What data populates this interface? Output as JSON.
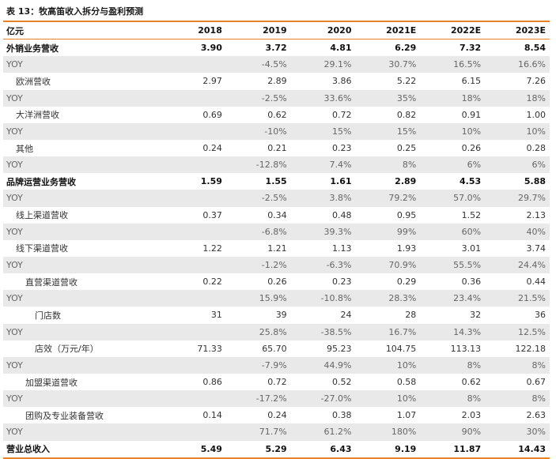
{
  "caption": "表 13：牧高笛收入拆分与盈利预测",
  "header": [
    "亿元",
    "2018",
    "2019",
    "2020",
    "2021E",
    "2022E",
    "2023E"
  ],
  "rows": [
    {
      "label": "外销业务营收",
      "type": "bold",
      "indent": 0,
      "values": [
        "3.90",
        "3.72",
        "4.81",
        "6.29",
        "7.32",
        "8.54"
      ]
    },
    {
      "label": "YOY",
      "type": "yoy",
      "indent": 0,
      "values": [
        "",
        "-4.5%",
        "29.1%",
        "30.7%",
        "16.5%",
        "16.6%"
      ]
    },
    {
      "label": "欧洲营收",
      "type": "normal",
      "indent": 1,
      "values": [
        "2.97",
        "2.89",
        "3.86",
        "5.22",
        "6.15",
        "7.26"
      ]
    },
    {
      "label": "YOY",
      "type": "yoy",
      "indent": 0,
      "values": [
        "",
        "-2.5%",
        "33.6%",
        "35%",
        "18%",
        "18%"
      ]
    },
    {
      "label": "大洋洲营收",
      "type": "normal",
      "indent": 1,
      "values": [
        "0.69",
        "0.62",
        "0.72",
        "0.82",
        "0.91",
        "1.00"
      ]
    },
    {
      "label": "YOY",
      "type": "yoy",
      "indent": 0,
      "values": [
        "",
        "-10%",
        "15%",
        "15%",
        "10%",
        "10%"
      ]
    },
    {
      "label": "其他",
      "type": "normal",
      "indent": 1,
      "values": [
        "0.24",
        "0.21",
        "0.23",
        "0.25",
        "0.26",
        "0.28"
      ]
    },
    {
      "label": "YOY",
      "type": "yoy",
      "indent": 0,
      "values": [
        "",
        "-12.8%",
        "7.4%",
        "8%",
        "6%",
        "6%"
      ]
    },
    {
      "label": "品牌运营业务营收",
      "type": "bold",
      "indent": 0,
      "values": [
        "1.59",
        "1.55",
        "1.61",
        "2.89",
        "4.53",
        "5.88"
      ]
    },
    {
      "label": "YOY",
      "type": "yoy",
      "indent": 0,
      "values": [
        "",
        "-2.5%",
        "3.8%",
        "79.2%",
        "57.0%",
        "29.7%"
      ]
    },
    {
      "label": "线上渠道营收",
      "type": "normal",
      "indent": 1,
      "values": [
        "0.37",
        "0.34",
        "0.48",
        "0.95",
        "1.52",
        "2.13"
      ]
    },
    {
      "label": "YOY",
      "type": "yoy",
      "indent": 0,
      "values": [
        "",
        "-6.8%",
        "39.3%",
        "99%",
        "60%",
        "40%"
      ]
    },
    {
      "label": "线下渠道营收",
      "type": "normal",
      "indent": 1,
      "values": [
        "1.22",
        "1.21",
        "1.13",
        "1.93",
        "3.01",
        "3.74"
      ]
    },
    {
      "label": "YOY",
      "type": "yoy",
      "indent": 0,
      "values": [
        "",
        "-1.2%",
        "-6.3%",
        "70.9%",
        "55.5%",
        "24.4%"
      ]
    },
    {
      "label": "直营渠道营收",
      "type": "normal",
      "indent": 2,
      "values": [
        "0.22",
        "0.26",
        "0.23",
        "0.29",
        "0.36",
        "0.44"
      ]
    },
    {
      "label": "YOY",
      "type": "yoy",
      "indent": 0,
      "values": [
        "",
        "15.9%",
        "-10.8%",
        "28.3%",
        "23.4%",
        "21.5%"
      ]
    },
    {
      "label": "门店数",
      "type": "normal",
      "indent": 3,
      "values": [
        "31",
        "39",
        "24",
        "28",
        "32",
        "36"
      ]
    },
    {
      "label": "YOY",
      "type": "yoy",
      "indent": 0,
      "values": [
        "",
        "25.8%",
        "-38.5%",
        "16.7%",
        "14.3%",
        "12.5%"
      ]
    },
    {
      "label": "店效（万元/年）",
      "type": "normal",
      "indent": 3,
      "values": [
        "71.33",
        "65.70",
        "95.23",
        "104.75",
        "113.13",
        "122.18"
      ]
    },
    {
      "label": "YOY",
      "type": "yoy",
      "indent": 0,
      "values": [
        "",
        "-7.9%",
        "44.9%",
        "10%",
        "8%",
        "8%"
      ]
    },
    {
      "label": "加盟渠道营收",
      "type": "normal",
      "indent": 2,
      "values": [
        "0.86",
        "0.72",
        "0.52",
        "0.58",
        "0.62",
        "0.67"
      ]
    },
    {
      "label": "YOY",
      "type": "yoy",
      "indent": 0,
      "values": [
        "",
        "-17.2%",
        "-27.0%",
        "10%",
        "8%",
        "8%"
      ]
    },
    {
      "label": "团购及专业装备营收",
      "type": "normal",
      "indent": 2,
      "values": [
        "0.14",
        "0.24",
        "0.38",
        "1.07",
        "2.03",
        "2.63"
      ]
    },
    {
      "label": "YOY",
      "type": "yoy",
      "indent": 0,
      "values": [
        "",
        "71.7%",
        "61.2%",
        "180%",
        "90%",
        "30%"
      ]
    },
    {
      "label": "营业总收入",
      "type": "bold total",
      "indent": 0,
      "values": [
        "5.49",
        "5.29",
        "6.43",
        "9.19",
        "11.87",
        "14.43"
      ]
    }
  ]
}
